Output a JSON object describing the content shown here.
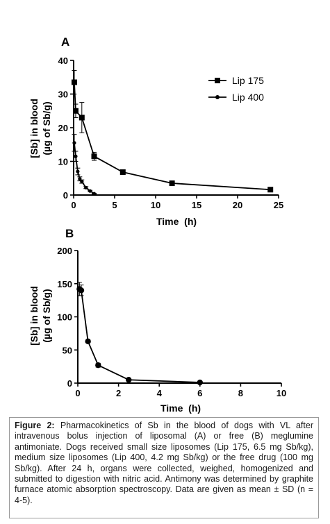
{
  "chart_data": [
    {
      "type": "line",
      "panel": "A",
      "xlabel": "Time  (h)",
      "ylabel_line1": "[Sb] in blood",
      "ylabel_line2": "(µg of Sb/g)",
      "xlim": [
        0,
        25
      ],
      "ylim": [
        0,
        40
      ],
      "xticks": [
        "0",
        "5",
        "10",
        "15",
        "20",
        "25"
      ],
      "yticks": [
        "0",
        "10",
        "20",
        "30",
        "40"
      ],
      "legend_position": "top-right",
      "grid": false,
      "series": [
        {
          "name": "Lip 175",
          "marker": "square",
          "x": [
            0.08,
            0.25,
            1,
            2.5,
            6,
            12,
            24
          ],
          "y": [
            33.5,
            25,
            23,
            11.5,
            6.8,
            3.5,
            1.6
          ],
          "err": [
            3.5,
            2,
            4.5,
            1.2,
            0.6,
            0.4,
            0.3
          ]
        },
        {
          "name": "Lip 400",
          "marker": "circle",
          "x": [
            0.08,
            0.25,
            0.5,
            0.75,
            1,
            1.5,
            2,
            2.5
          ],
          "y": [
            15.5,
            11.5,
            7,
            4.8,
            4,
            2.2,
            1.2,
            0.4
          ],
          "err": [
            2.5,
            1.5,
            1,
            0.6,
            0.5,
            0.3,
            0.2,
            0.1
          ]
        }
      ]
    },
    {
      "type": "line",
      "panel": "B",
      "xlabel": "Time  (h)",
      "ylabel_line1": "[Sb] in blood",
      "ylabel_line2": "(µg of Sb/g)",
      "xlim": [
        0,
        10
      ],
      "ylim": [
        0,
        200
      ],
      "xticks": [
        "0",
        "2",
        "4",
        "6",
        "8",
        "10"
      ],
      "yticks": [
        "0",
        "50",
        "100",
        "150",
        "200"
      ],
      "grid": false,
      "series": [
        {
          "name": "",
          "marker": "circle",
          "x": [
            0.08,
            0.17,
            0.5,
            1,
            2.5,
            6
          ],
          "y": [
            142,
            140,
            63,
            27,
            5,
            1
          ],
          "err": [
            10,
            8,
            2,
            3,
            1,
            0.3
          ]
        }
      ]
    }
  ],
  "caption": {
    "label": "Figure 2:",
    "text": " Pharmacokinetics of Sb in the blood of dogs with VL after intravenous bolus injection of liposomal (A) or free (B) meglumine antimoniate. Dogs received small size liposomes (Lip 175, 6.5 mg Sb/kg), medium size liposomes (Lip 400, 4.2 mg Sb/kg) or the free drug (100 mg Sb/kg). After 24 h, organs were collected, weighed, homogenized and submitted to digestion with nitric acid. Antimony was determined by graphite furnace atomic absorption spectroscopy. Data are given as mean ± SD (n = 4-5)."
  }
}
